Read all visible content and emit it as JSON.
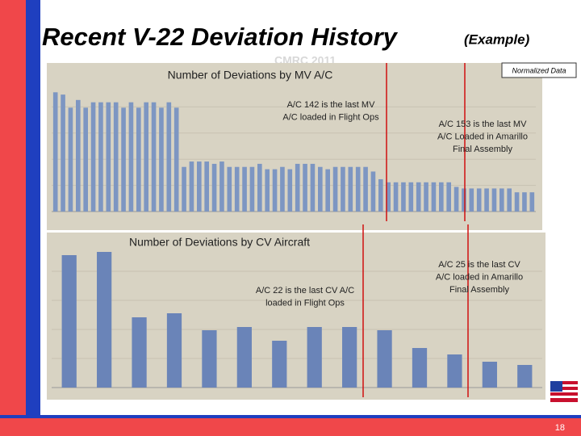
{
  "slide": {
    "title": "Recent V-22 Deviation History",
    "subtitle": "(Example)",
    "watermark": "CMRC 2011",
    "note": "Normalized Data",
    "page": "18"
  },
  "chart_data": [
    {
      "type": "bar",
      "title": "Number of Deviations by MV A/C",
      "color": "#7d96c2",
      "ylim": [
        0,
        170
      ],
      "values": [
        155,
        152,
        135,
        145,
        135,
        142,
        142,
        142,
        142,
        135,
        142,
        135,
        142,
        142,
        135,
        142,
        135,
        58,
        65,
        65,
        65,
        62,
        65,
        58,
        58,
        58,
        58,
        62,
        55,
        55,
        58,
        55,
        62,
        62,
        62,
        58,
        55,
        58,
        58,
        58,
        58,
        58,
        52,
        42,
        38,
        38,
        38,
        38,
        38,
        38,
        38,
        38,
        38,
        32,
        30,
        30,
        30,
        30,
        30,
        30,
        30,
        25,
        25,
        25
      ],
      "annotations": [
        [
          "A/C 142 is the last MV",
          "A/C loaded in Flight Ops"
        ],
        [
          "A/C 153 is the last MV",
          "A/C Loaded in Amarillo",
          "Final Assembly"
        ]
      ]
    },
    {
      "type": "bar",
      "title": "Number of Deviations by CV Aircraft",
      "color": "#6a84b8",
      "ylim": [
        0,
        180
      ],
      "values": [
        164,
        168,
        87,
        92,
        71,
        75,
        58,
        75,
        75,
        71,
        49,
        41,
        32,
        28
      ],
      "annotations": [
        [
          "A/C 22 is the last CV A/C",
          "loaded in Flight Ops"
        ],
        [
          "A/C 25 is the last CV",
          "A/C loaded in Amarillo",
          "Final Assembly"
        ]
      ]
    }
  ]
}
